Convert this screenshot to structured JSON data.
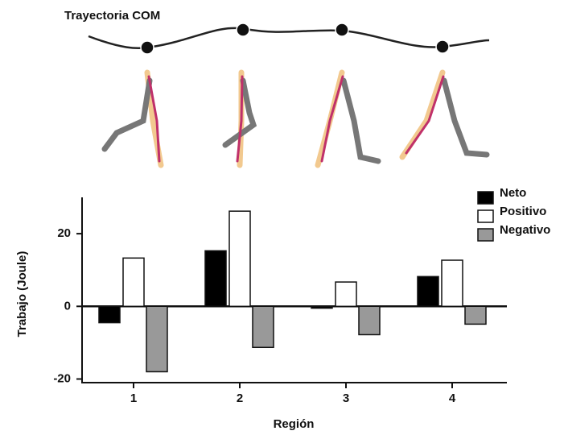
{
  "chart_data": {
    "type": "bar",
    "title": "Trayectoria COM",
    "x_label": "Región",
    "y_label": "Trabajo (Joule)",
    "categories": [
      "1",
      "2",
      "3",
      "4"
    ],
    "series": [
      {
        "name": "Neto",
        "color": "#000000",
        "values": [
          -4.5,
          15.3,
          -0.5,
          8.2
        ]
      },
      {
        "name": "Positivo",
        "color": "#ffffff",
        "values": [
          13.3,
          26.2,
          6.7,
          12.7
        ]
      },
      {
        "name": "Negativo",
        "color": "#999999",
        "values": [
          -18,
          -11.3,
          -7.8,
          -4.9
        ]
      }
    ],
    "ylim": [
      -21,
      30
    ],
    "yticks": [
      -20,
      0,
      20
    ],
    "legend": "upper right"
  }
}
